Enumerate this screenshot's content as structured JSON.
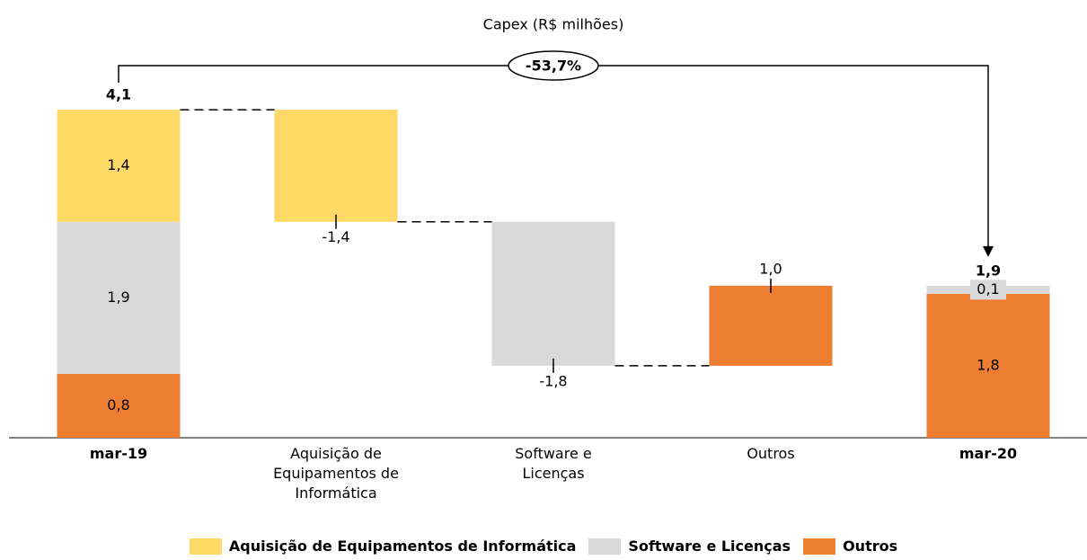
{
  "chart_data": {
    "type": "waterfall",
    "title": "Capex (R$ milhões)",
    "categories": [
      "mar-19",
      "Aquisição de Equipamentos de Informática",
      "Software e Licenças",
      "Outros",
      "mar-20"
    ],
    "series": [
      {
        "name": "Aquisição de Equipamentos de Informática",
        "color": "#FFD966",
        "values": [
          1.4,
          -1.4,
          null,
          null,
          null
        ],
        "value_labels": [
          "1,4",
          "-1,4",
          null,
          null,
          null
        ]
      },
      {
        "name": "Software e Licenças",
        "color": "#D9D9D9",
        "values": [
          1.9,
          null,
          -1.8,
          null,
          0.1
        ],
        "value_labels": [
          "1,9",
          null,
          "-1,8",
          null,
          "0,1"
        ]
      },
      {
        "name": "Outros",
        "color": "#ED7D31",
        "values": [
          0.8,
          null,
          null,
          1.0,
          1.8
        ],
        "value_labels": [
          "0,8",
          null,
          null,
          "1,0",
          "1,8"
        ]
      }
    ],
    "totals": {
      "values": [
        4.1,
        null,
        null,
        null,
        1.9
      ],
      "value_labels": [
        "4,1",
        null,
        null,
        null,
        "1,9"
      ]
    },
    "annotation": "-53,7%"
  }
}
